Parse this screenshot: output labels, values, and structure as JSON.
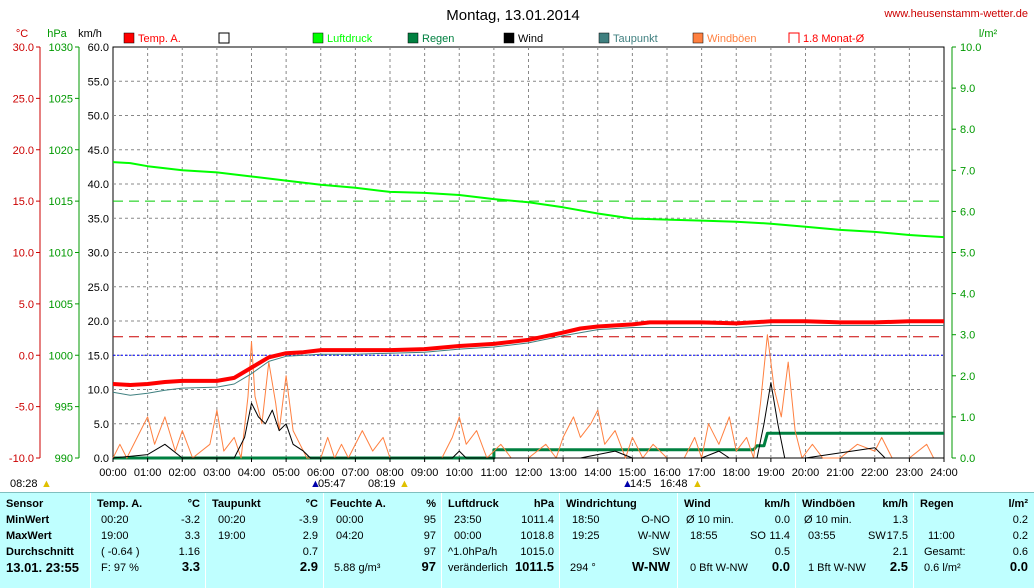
{
  "title": "Montag, 13.01.2014",
  "site": "www.heusenstamm-wetter.de",
  "units": {
    "temp": "°C",
    "press": "hPa",
    "speed": "km/h",
    "rain": "l/m²"
  },
  "legend": [
    {
      "label": "Temp. A.",
      "color": "#ff0000",
      "style": "box"
    },
    {
      "label": "",
      "color": "#ffffff",
      "style": "empty"
    },
    {
      "label": "Luftdruck",
      "color": "#00ff00",
      "style": "box"
    },
    {
      "label": "Regen",
      "color": "#008040",
      "style": "box"
    },
    {
      "label": "Wind",
      "color": "#000000",
      "style": "box"
    },
    {
      "label": "Taupunkt",
      "color": "#408080",
      "style": "box"
    },
    {
      "label": "Windböen",
      "color": "#ff8040",
      "style": "box"
    },
    {
      "label": "1.8 Monat-Ø",
      "color": "#ff0000",
      "style": "outline"
    }
  ],
  "chart_data": {
    "type": "line",
    "x_ticks": [
      "00:00",
      "01:00",
      "02:00",
      "03:00",
      "04:00",
      "05:00",
      "06:00",
      "07:00",
      "08:00",
      "09:00",
      "10:00",
      "11:00",
      "12:00",
      "13:00",
      "14:00",
      "15:00",
      "16:00",
      "17:00",
      "18:00",
      "19:00",
      "20:00",
      "21:00",
      "22:00",
      "23:00",
      "24:00"
    ],
    "xlim": [
      0,
      24
    ],
    "axes": {
      "temp": {
        "ylim": [
          -10,
          30
        ],
        "ticks": [
          "30.0",
          "25.0",
          "20.0",
          "15.0",
          "10.0",
          "5.0",
          "0.0",
          "-5.0",
          "-10.0"
        ]
      },
      "pressure": {
        "ylim": [
          990,
          1030
        ],
        "ticks": [
          "1030",
          "1025",
          "1020",
          "1015",
          "1010",
          "1005",
          "1000",
          "995",
          "990"
        ]
      },
      "wind": {
        "ylim": [
          0,
          60
        ],
        "ticks": [
          "60.0",
          "55.0",
          "50.0",
          "45.0",
          "40.0",
          "35.0",
          "30.0",
          "25.0",
          "20.0",
          "15.0",
          "10.0",
          "5.0",
          "0.0"
        ]
      },
      "rain": {
        "ylim": [
          0,
          10
        ],
        "ticks": [
          "10.0",
          "9.0",
          "8.0",
          "7.0",
          "6.0",
          "5.0",
          "4.0",
          "3.0",
          "2.0",
          "1.0",
          "0.0"
        ]
      }
    },
    "reference_lines": [
      {
        "name": "1.8 Monat-Ø",
        "axis": "temp",
        "value": 1.8,
        "color": "#cc0000"
      },
      {
        "axis": "pressure",
        "value": 1015,
        "color": "#00cc00"
      },
      {
        "axis": "temp",
        "value": 0,
        "color": "#0000ff"
      }
    ],
    "series": [
      {
        "name": "Temp. A.",
        "axis": "temp",
        "color": "#ff0000",
        "width": 4,
        "points": [
          [
            0,
            -2.8
          ],
          [
            0.5,
            -2.9
          ],
          [
            1,
            -2.8
          ],
          [
            1.5,
            -2.6
          ],
          [
            2,
            -2.5
          ],
          [
            3,
            -2.5
          ],
          [
            3.5,
            -2.2
          ],
          [
            4,
            -1.2
          ],
          [
            4.5,
            -0.2
          ],
          [
            5,
            0.2
          ],
          [
            5.5,
            0.3
          ],
          [
            6,
            0.5
          ],
          [
            7,
            0.5
          ],
          [
            8,
            0.5
          ],
          [
            9,
            0.6
          ],
          [
            10,
            0.9
          ],
          [
            11,
            1.1
          ],
          [
            12,
            1.5
          ],
          [
            13,
            2.2
          ],
          [
            13.5,
            2.6
          ],
          [
            14,
            2.8
          ],
          [
            15,
            3.0
          ],
          [
            15.5,
            3.2
          ],
          [
            17,
            3.2
          ],
          [
            18,
            3.1
          ],
          [
            19,
            3.3
          ],
          [
            20,
            3.3
          ],
          [
            21,
            3.2
          ],
          [
            22,
            3.2
          ],
          [
            23,
            3.3
          ],
          [
            24,
            3.3
          ]
        ]
      },
      {
        "name": "Taupunkt",
        "axis": "temp",
        "color": "#408080",
        "width": 1,
        "points": [
          [
            0,
            -3.6
          ],
          [
            0.5,
            -3.9
          ],
          [
            1,
            -3.7
          ],
          [
            1.5,
            -3.4
          ],
          [
            2,
            -3.2
          ],
          [
            3,
            -3.1
          ],
          [
            3.5,
            -2.8
          ],
          [
            4,
            -1.8
          ],
          [
            4.5,
            -0.6
          ],
          [
            5,
            -0.1
          ],
          [
            6,
            0.1
          ],
          [
            7,
            0.1
          ],
          [
            8,
            0.2
          ],
          [
            9,
            0.3
          ],
          [
            10,
            0.6
          ],
          [
            11,
            0.8
          ],
          [
            12,
            1.2
          ],
          [
            13,
            1.9
          ],
          [
            14,
            2.5
          ],
          [
            15,
            2.7
          ],
          [
            16,
            2.7
          ],
          [
            17,
            2.7
          ],
          [
            18,
            2.7
          ],
          [
            19,
            2.9
          ],
          [
            20,
            2.9
          ],
          [
            21,
            2.9
          ],
          [
            22,
            2.9
          ],
          [
            23,
            2.9
          ],
          [
            24,
            2.9
          ]
        ]
      },
      {
        "name": "Luftdruck",
        "axis": "pressure",
        "color": "#00ff00",
        "width": 2,
        "points": [
          [
            0,
            1018.8
          ],
          [
            0.5,
            1018.7
          ],
          [
            1,
            1018.4
          ],
          [
            2,
            1018.0
          ],
          [
            3,
            1017.8
          ],
          [
            4,
            1017.4
          ],
          [
            5,
            1017.0
          ],
          [
            6,
            1016.6
          ],
          [
            7,
            1016.3
          ],
          [
            8,
            1015.9
          ],
          [
            9,
            1015.8
          ],
          [
            10,
            1015.6
          ],
          [
            11,
            1015.2
          ],
          [
            12,
            1014.9
          ],
          [
            13,
            1014.4
          ],
          [
            14,
            1013.8
          ],
          [
            15,
            1013.3
          ],
          [
            16,
            1013.2
          ],
          [
            17,
            1013.1
          ],
          [
            18,
            1013.0
          ],
          [
            19,
            1012.8
          ],
          [
            20,
            1012.5
          ],
          [
            21,
            1012.2
          ],
          [
            22,
            1012.0
          ],
          [
            23,
            1011.7
          ],
          [
            23.5,
            1011.6
          ],
          [
            24,
            1011.5
          ]
        ]
      },
      {
        "name": "Regen",
        "axis": "rain",
        "color": "#008040",
        "width": 3,
        "points": [
          [
            0,
            0
          ],
          [
            11,
            0
          ],
          [
            11,
            0.2
          ],
          [
            18.5,
            0.2
          ],
          [
            18.6,
            0.3
          ],
          [
            18.8,
            0.3
          ],
          [
            18.9,
            0.6
          ],
          [
            24,
            0.6
          ]
        ]
      },
      {
        "name": "Wind",
        "axis": "wind",
        "color": "#000000",
        "width": 1,
        "points": [
          [
            0,
            0
          ],
          [
            1,
            0.5
          ],
          [
            1.5,
            2
          ],
          [
            2,
            0
          ],
          [
            3.5,
            0
          ],
          [
            3.8,
            3
          ],
          [
            4,
            8
          ],
          [
            4.2,
            6
          ],
          [
            4.4,
            5
          ],
          [
            4.6,
            7
          ],
          [
            4.8,
            4
          ],
          [
            5,
            5
          ],
          [
            5.2,
            2
          ],
          [
            5.5,
            1
          ],
          [
            5.7,
            0
          ],
          [
            6,
            0
          ],
          [
            9.8,
            0
          ],
          [
            10,
            1
          ],
          [
            10.2,
            0
          ],
          [
            13.5,
            0
          ],
          [
            14.5,
            1
          ],
          [
            15,
            0
          ],
          [
            17,
            0
          ],
          [
            17.5,
            1
          ],
          [
            17.8,
            0
          ],
          [
            18.6,
            0
          ],
          [
            18.8,
            5
          ],
          [
            19,
            11
          ],
          [
            19.2,
            5
          ],
          [
            19.4,
            0
          ],
          [
            20,
            0
          ],
          [
            22,
            1.5
          ],
          [
            22.3,
            0
          ],
          [
            24,
            0
          ]
        ]
      },
      {
        "name": "Windböen",
        "axis": "wind",
        "color": "#ff8040",
        "width": 1,
        "points": [
          [
            0,
            0
          ],
          [
            0.2,
            2
          ],
          [
            0.4,
            0
          ],
          [
            0.7,
            3
          ],
          [
            1,
            6
          ],
          [
            1.2,
            2
          ],
          [
            1.5,
            6
          ],
          [
            1.8,
            1
          ],
          [
            2,
            4
          ],
          [
            2.3,
            0
          ],
          [
            2.8,
            2
          ],
          [
            3,
            7
          ],
          [
            3.2,
            1
          ],
          [
            3.5,
            3
          ],
          [
            3.7,
            0
          ],
          [
            3.9,
            9
          ],
          [
            4,
            17
          ],
          [
            4.1,
            9
          ],
          [
            4.3,
            5
          ],
          [
            4.5,
            14
          ],
          [
            4.7,
            8
          ],
          [
            4.8,
            4
          ],
          [
            5,
            12
          ],
          [
            5.2,
            4
          ],
          [
            5.4,
            2
          ],
          [
            5.6,
            0
          ],
          [
            6,
            0
          ],
          [
            6.2,
            3
          ],
          [
            6.4,
            0
          ],
          [
            6.6,
            2
          ],
          [
            6.8,
            0
          ],
          [
            7.2,
            4
          ],
          [
            7.5,
            1
          ],
          [
            7.8,
            3
          ],
          [
            8,
            0
          ],
          [
            9.5,
            0
          ],
          [
            9.8,
            3
          ],
          [
            10,
            6
          ],
          [
            10.2,
            2
          ],
          [
            10.5,
            4
          ],
          [
            10.8,
            0
          ],
          [
            11.2,
            2
          ],
          [
            11.5,
            0
          ],
          [
            12,
            0
          ],
          [
            12.5,
            2
          ],
          [
            12.8,
            0
          ],
          [
            13,
            3
          ],
          [
            13.3,
            6
          ],
          [
            13.5,
            3
          ],
          [
            13.8,
            5
          ],
          [
            14,
            7
          ],
          [
            14.2,
            2
          ],
          [
            14.5,
            4
          ],
          [
            14.8,
            0
          ],
          [
            15,
            3
          ],
          [
            15.3,
            0
          ],
          [
            15.6,
            2
          ],
          [
            16,
            0
          ],
          [
            16.5,
            0
          ],
          [
            16.8,
            3
          ],
          [
            17,
            0
          ],
          [
            17.2,
            5
          ],
          [
            17.5,
            2
          ],
          [
            17.8,
            6
          ],
          [
            18,
            1
          ],
          [
            18.3,
            3
          ],
          [
            18.5,
            0
          ],
          [
            18.7,
            8
          ],
          [
            18.9,
            18
          ],
          [
            19.1,
            10
          ],
          [
            19.3,
            6
          ],
          [
            19.5,
            14
          ],
          [
            19.7,
            4
          ],
          [
            19.9,
            0
          ],
          [
            20.2,
            2
          ],
          [
            20.5,
            0
          ],
          [
            21,
            0
          ],
          [
            21.5,
            2
          ],
          [
            22,
            1
          ],
          [
            22.2,
            3
          ],
          [
            22.5,
            0
          ],
          [
            23,
            0
          ],
          [
            23.5,
            2
          ],
          [
            23.7,
            0
          ],
          [
            24,
            0
          ]
        ]
      }
    ]
  },
  "sun": {
    "sunrise_sym": "08:28",
    "a_time": "05:47",
    "b_time": "08:19",
    "c_time": "14:5",
    "d_time": "16:48"
  },
  "stats": {
    "labels": {
      "h": "Sensor",
      "min": "MinWert",
      "max": "MaxWert",
      "avg": "Durchschnitt",
      "date": "13.01. 23:55"
    },
    "temp": {
      "h": "Temp. A.",
      "u": "°C",
      "min_t": "00:20",
      "min_v": "-3.2",
      "max_t": "19:00",
      "max_v": "3.3",
      "avg_t": "( -0.64 )",
      "avg_v": "1.16",
      "cur_t": "F: 97 %",
      "cur_v": "3.3"
    },
    "dew": {
      "h": "Taupunkt",
      "u": "°C",
      "min_t": "00:20",
      "min_v": "-3.9",
      "max_t": "19:00",
      "max_v": "2.9",
      "avg_v": "0.7",
      "cur_v": "2.9"
    },
    "hum": {
      "h": "Feuchte A.",
      "u": "%",
      "min_t": "00:00",
      "min_v": "95",
      "max_t": "04:20",
      "max_v": "97",
      "avg_v": "97",
      "cur_t": "5.88 g/m³",
      "cur_v": "97"
    },
    "press": {
      "h": "Luftdruck",
      "u": "hPa",
      "min_t": "23:50",
      "min_v": "1011.4",
      "max_t": "00:00",
      "max_v": "1018.8",
      "avg_t": "^1.0hPa/h",
      "avg_v": "1015.0",
      "cur_t": "veränderlich",
      "cur_v": "1011.5"
    },
    "dir": {
      "h": "Windrichtung",
      "min_t": "18:50",
      "min_v": "O-NO",
      "max_t": "19:25",
      "max_v": "W-NW",
      "avg_v": "SW",
      "cur_t": "294 °",
      "cur_v": "W-NW"
    },
    "wind": {
      "h": "Wind",
      "u": "km/h",
      "min_t": "Ø 10 min.",
      "min_v": "0.0",
      "max_t": "18:55",
      "max_d": "SO",
      "max_v": "11.4",
      "avg_v": "0.5",
      "cur_t": "0 Bft W-NW",
      "cur_v": "0.0"
    },
    "gust": {
      "h": "Windböen",
      "u": "km/h",
      "min_t": "Ø 10 min.",
      "min_v": "1.3",
      "max_t": "03:55",
      "max_d": "SW",
      "max_v": "17.5",
      "avg_v": "2.1",
      "cur_t": "1 Bft W-NW",
      "cur_v": "2.5"
    },
    "rain": {
      "h": "Regen",
      "u": "l/m²",
      "min_v": "0.2",
      "max_t": "11:00",
      "max_v": "0.2",
      "avg_t": "Gesamt:",
      "avg_v": "0.6",
      "cur_t": "0.6 l/m²",
      "cur_v": "0.0"
    }
  }
}
